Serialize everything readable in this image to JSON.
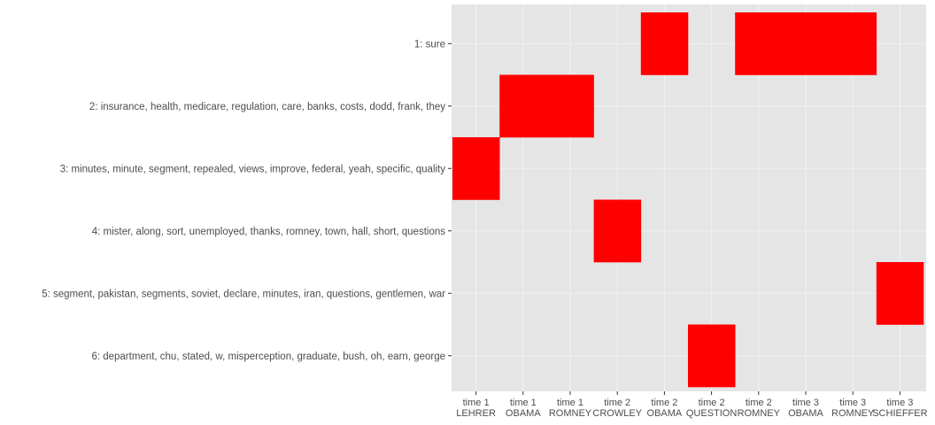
{
  "chart_data": {
    "type": "heatmap",
    "title": "",
    "xlabel": "",
    "ylabel": "",
    "colors": {
      "fill": "#ff0000",
      "panel": "#e5e5e5",
      "grid": "#f2f2f2",
      "text": "#4d4d4d"
    },
    "x_categories": [
      [
        "time 1",
        "LEHRER"
      ],
      [
        "time 1",
        "OBAMA"
      ],
      [
        "time 1",
        "ROMNEY"
      ],
      [
        "time 2",
        "CROWLEY"
      ],
      [
        "time 2",
        "OBAMA"
      ],
      [
        "time 2",
        "QUESTION"
      ],
      [
        "time 2",
        "ROMNEY"
      ],
      [
        "time 3",
        "OBAMA"
      ],
      [
        "time 3",
        "ROMNEY"
      ],
      [
        "time 3",
        "SCHIEFFER"
      ]
    ],
    "y_categories": [
      "1: sure",
      "2: insurance, health, medicare, regulation, care, banks, costs, dodd, frank, they",
      "3: minutes, minute, segment, repealed, views, improve, federal, yeah, specific, quality",
      "4: mister, along, sort, unemployed, thanks, romney, town, hall, short, questions",
      "5: segment, pakistan, segments, soviet, declare, minutes, iran, questions, gentlemen, war",
      "6: department, chu, stated, w, misperception, graduate, bush, oh, earn, george"
    ],
    "tiles": [
      {
        "x": 0,
        "y": 2
      },
      {
        "x": 1,
        "y": 1
      },
      {
        "x": 2,
        "y": 1
      },
      {
        "x": 3,
        "y": 3
      },
      {
        "x": 4,
        "y": 0
      },
      {
        "x": 5,
        "y": 5
      },
      {
        "x": 6,
        "y": 0
      },
      {
        "x": 7,
        "y": 0
      },
      {
        "x": 8,
        "y": 0
      },
      {
        "x": 9,
        "y": 4
      }
    ]
  }
}
